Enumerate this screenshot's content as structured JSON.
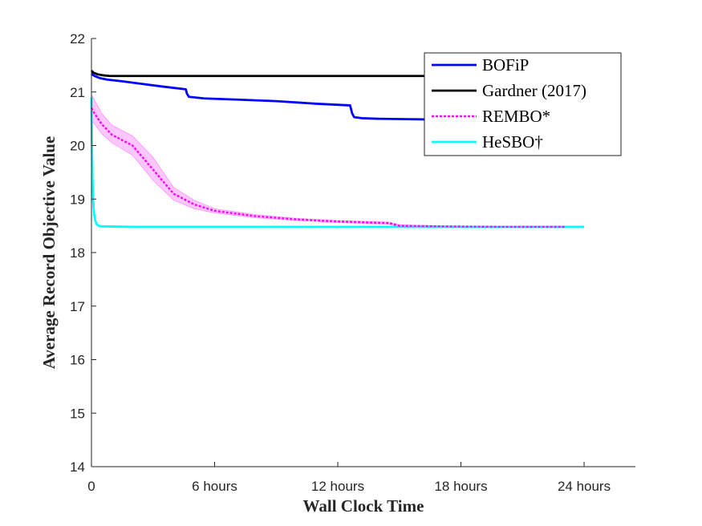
{
  "chart_data": {
    "type": "line",
    "xlabel": "Wall Clock Time",
    "ylabel": "Average Record Objective Value",
    "xlim": [
      0,
      26.5
    ],
    "ylim": [
      14,
      22
    ],
    "grid": false,
    "legend_position": "top-right",
    "x_ticks": [
      {
        "value": 0,
        "label": "0"
      },
      {
        "value": 6,
        "label": "6 hours"
      },
      {
        "value": 12,
        "label": "12 hours"
      },
      {
        "value": 18,
        "label": "18 hours"
      },
      {
        "value": 24,
        "label": "24 hours"
      }
    ],
    "y_ticks": [
      {
        "value": 14,
        "label": "14"
      },
      {
        "value": 15,
        "label": "15"
      },
      {
        "value": 16,
        "label": "16"
      },
      {
        "value": 17,
        "label": "17"
      },
      {
        "value": 18,
        "label": "18"
      },
      {
        "value": 19,
        "label": "19"
      },
      {
        "value": 20,
        "label": "20"
      },
      {
        "value": 21,
        "label": "21"
      },
      {
        "value": 22,
        "label": "22"
      }
    ],
    "series": [
      {
        "name": "BOFiP",
        "color": "#0000ff",
        "style": "solid",
        "x": [
          0,
          0.15,
          0.4,
          0.8,
          1.5,
          2.5,
          3.5,
          4.6,
          4.65,
          4.75,
          5.5,
          7,
          9,
          11,
          12.6,
          12.7,
          12.8,
          13.2,
          14,
          16,
          17,
          18,
          20,
          22,
          24
        ],
        "y": [
          21.34,
          21.3,
          21.26,
          21.23,
          21.2,
          21.15,
          21.1,
          21.05,
          20.97,
          20.91,
          20.88,
          20.86,
          20.83,
          20.78,
          20.75,
          20.6,
          20.53,
          20.51,
          20.5,
          20.49,
          20.48,
          20.48,
          20.48,
          20.48,
          20.48
        ]
      },
      {
        "name": "Gardner (2017)",
        "color": "#000000",
        "style": "solid",
        "x": [
          0,
          0.1,
          0.3,
          0.6,
          0.9,
          2,
          5,
          10,
          15,
          20,
          24
        ],
        "y": [
          21.4,
          21.36,
          21.33,
          21.31,
          21.3,
          21.3,
          21.3,
          21.3,
          21.3,
          21.3,
          21.3
        ]
      },
      {
        "name": "REMBO*",
        "color": "#ff00ff",
        "style": "dotted",
        "x": [
          0,
          0.15,
          0.5,
          1,
          2,
          3,
          4,
          5,
          6,
          8,
          10,
          12,
          14.5,
          15,
          17,
          20,
          23.1
        ],
        "y": [
          20.7,
          20.6,
          20.4,
          20.2,
          20.0,
          19.55,
          19.1,
          18.9,
          18.78,
          18.68,
          18.62,
          18.58,
          18.55,
          18.5,
          18.49,
          18.48,
          18.48
        ],
        "band_upper": [
          20.95,
          20.85,
          20.6,
          20.38,
          20.18,
          19.78,
          19.22,
          18.98,
          18.82,
          18.71,
          18.64,
          18.6,
          18.57,
          18.52,
          18.5,
          18.49,
          18.49
        ],
        "band_lower": [
          20.45,
          20.4,
          20.22,
          20.05,
          19.82,
          19.35,
          18.98,
          18.82,
          18.74,
          18.65,
          18.6,
          18.56,
          18.53,
          18.48,
          18.47,
          18.47,
          18.47
        ]
      },
      {
        "name": "HeSBO†",
        "color": "#00ffff",
        "style": "solid",
        "x": [
          0,
          0.02,
          0.05,
          0.08,
          0.12,
          0.18,
          0.25,
          0.35,
          0.5,
          2,
          6,
          12,
          18,
          24
        ],
        "y": [
          20.9,
          20.1,
          19.4,
          19.0,
          18.75,
          18.6,
          18.53,
          18.5,
          18.49,
          18.48,
          18.48,
          18.48,
          18.48,
          18.48
        ]
      }
    ]
  }
}
